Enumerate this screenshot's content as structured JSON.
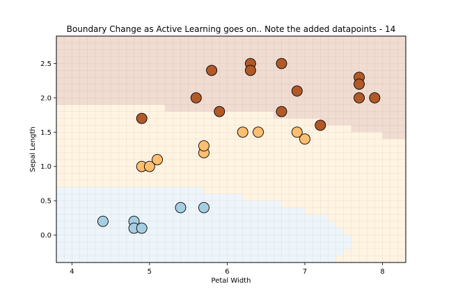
{
  "chart_data": {
    "type": "scatter",
    "title": "Boundary Change as Active Learning goes on.. Note the added datapoints - 14",
    "xlabel": "Petal Width",
    "ylabel": "Sepal Length",
    "xlim": [
      3.8,
      8.3
    ],
    "ylim": [
      -0.4,
      2.9
    ],
    "xticks": [
      4,
      5,
      6,
      7,
      8
    ],
    "yticks": [
      0.0,
      0.5,
      1.0,
      1.5,
      2.0,
      2.5
    ],
    "grid": false,
    "legend": "none",
    "colors": {
      "class0_point": "#a6cee3",
      "class1_point": "#fdbf6f",
      "class2_point": "#b15928",
      "class0_region": "#eef5fa",
      "class1_region": "#fff3e2",
      "class2_region": "#f1dcd1",
      "point_edge": "#000000"
    },
    "regions": {
      "class0": [
        [
          3.8,
          -0.4
        ],
        [
          3.8,
          0.7
        ],
        [
          5.7,
          0.7
        ],
        [
          5.7,
          0.6
        ],
        [
          6.2,
          0.6
        ],
        [
          6.2,
          0.5
        ],
        [
          6.7,
          0.5
        ],
        [
          6.7,
          0.4
        ],
        [
          7.0,
          0.4
        ],
        [
          7.0,
          0.3
        ],
        [
          7.3,
          0.3
        ],
        [
          7.3,
          0.2
        ],
        [
          7.4,
          0.2
        ],
        [
          7.4,
          0.1
        ],
        [
          7.5,
          0.1
        ],
        [
          7.5,
          0.0
        ],
        [
          7.6,
          0.0
        ],
        [
          7.6,
          -0.2
        ],
        [
          7.5,
          -0.2
        ],
        [
          7.5,
          -0.3
        ],
        [
          7.4,
          -0.3
        ],
        [
          7.4,
          -0.4
        ]
      ],
      "class2": [
        [
          3.8,
          2.9
        ],
        [
          8.3,
          2.9
        ],
        [
          8.3,
          1.4
        ],
        [
          8.0,
          1.4
        ],
        [
          8.0,
          1.5
        ],
        [
          7.6,
          1.5
        ],
        [
          7.6,
          1.6
        ],
        [
          7.2,
          1.6
        ],
        [
          7.2,
          1.7
        ],
        [
          6.6,
          1.7
        ],
        [
          6.6,
          1.8
        ],
        [
          5.2,
          1.8
        ],
        [
          5.2,
          1.9
        ],
        [
          3.8,
          1.9
        ]
      ]
    },
    "series": [
      {
        "class": 0,
        "x": [
          4.4,
          4.8,
          4.8,
          4.9,
          5.4,
          5.7
        ],
        "y": [
          0.2,
          0.2,
          0.1,
          0.1,
          0.4,
          0.4
        ]
      },
      {
        "class": 1,
        "x": [
          4.9,
          5.0,
          5.1,
          5.7,
          5.7,
          6.2,
          6.4,
          6.9,
          7.0
        ],
        "y": [
          1.0,
          1.0,
          1.1,
          1.2,
          1.3,
          1.5,
          1.5,
          1.5,
          1.4
        ]
      },
      {
        "class": 2,
        "x": [
          4.9,
          5.6,
          5.8,
          5.9,
          6.3,
          6.3,
          6.7,
          6.7,
          6.9,
          7.2,
          7.7,
          7.7,
          7.7,
          7.9
        ],
        "y": [
          1.7,
          2.0,
          2.4,
          1.8,
          2.5,
          2.4,
          2.5,
          1.8,
          2.1,
          1.6,
          2.3,
          2.2,
          2.0,
          2.0
        ]
      }
    ]
  }
}
